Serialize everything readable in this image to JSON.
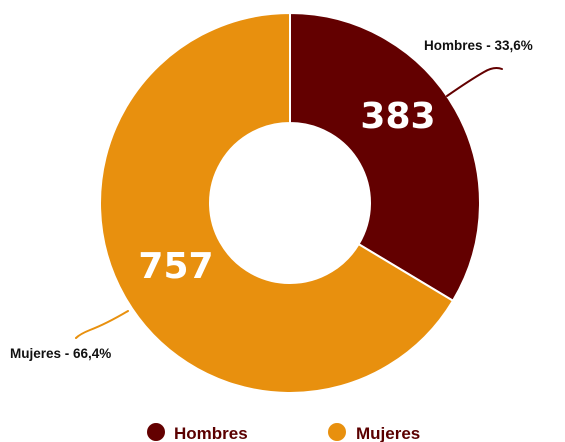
{
  "chart_data": {
    "type": "pie",
    "variant": "donut",
    "title": "",
    "legend_position": "bottom",
    "slices": [
      {
        "name": "Hombres",
        "value": 383,
        "percent_label": "Hombres - 33,6%",
        "color": "#630000"
      },
      {
        "name": "Mujeres",
        "value": 757,
        "percent_label": "Mujeres - 66,4%",
        "color": "#e8900e"
      }
    ]
  }
}
